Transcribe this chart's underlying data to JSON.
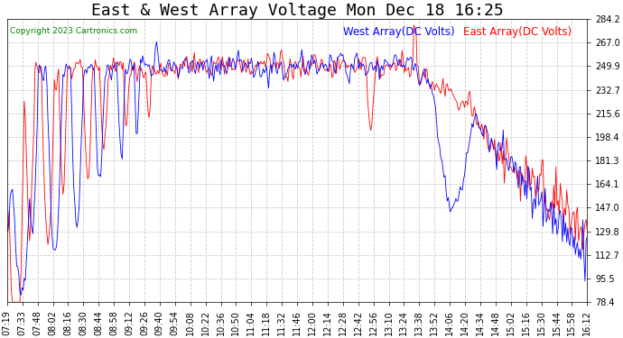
{
  "title": "East & West Array Voltage Mon Dec 18 16:25",
  "copyright": "Copyright 2023 Cartronics.com",
  "legend_east": "East Array(DC Volts)",
  "legend_west": "West Array(DC Volts)",
  "east_color": "blue",
  "west_color": "red",
  "background_color": "#ffffff",
  "plot_bg_color": "#ffffff",
  "grid_color": "#cccccc",
  "y_ticks": [
    78.4,
    95.5,
    112.7,
    129.8,
    147.0,
    164.1,
    181.3,
    198.4,
    215.6,
    232.7,
    249.9,
    267.0,
    284.2
  ],
  "x_labels": [
    "07:19",
    "07:33",
    "07:48",
    "08:02",
    "08:16",
    "08:30",
    "08:44",
    "08:58",
    "09:12",
    "09:26",
    "09:40",
    "09:54",
    "10:08",
    "10:22",
    "10:36",
    "10:50",
    "11:04",
    "11:18",
    "11:32",
    "11:46",
    "12:00",
    "12:14",
    "12:28",
    "12:42",
    "12:56",
    "13:10",
    "13:24",
    "13:38",
    "13:52",
    "14:06",
    "14:20",
    "14:34",
    "14:48",
    "15:02",
    "15:16",
    "15:30",
    "15:44",
    "15:58",
    "16:12"
  ],
  "ylim_min": 78.4,
  "ylim_max": 284.2,
  "title_fontsize": 13,
  "tick_fontsize": 7,
  "legend_fontsize": 8.5,
  "copyright_fontsize": 6.5
}
